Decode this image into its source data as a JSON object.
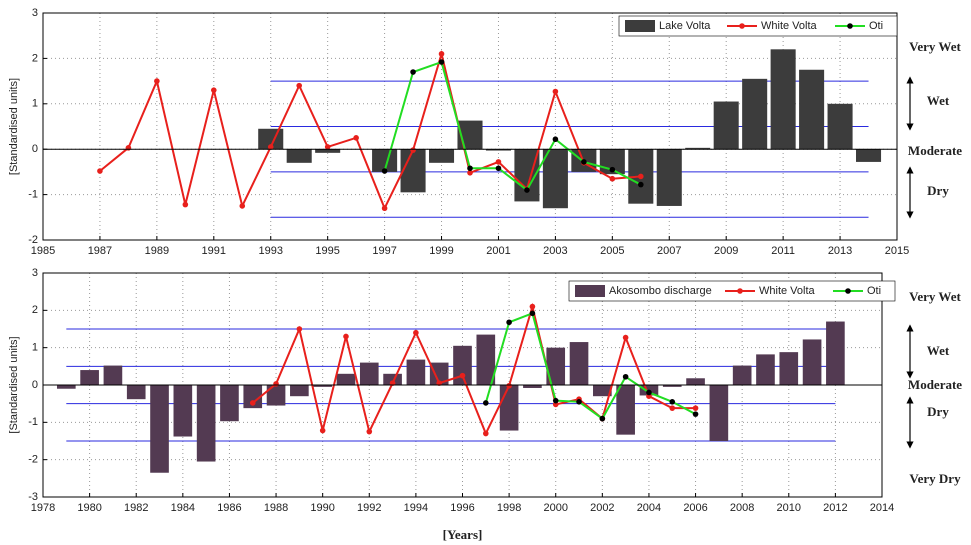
{
  "chart_data": [
    {
      "type": "bar_line",
      "ylabel": "[Standardised units]",
      "xlim": [
        1985,
        2015
      ],
      "xticks": [
        1985,
        1987,
        1989,
        1991,
        1993,
        1995,
        1997,
        1999,
        2001,
        2003,
        2005,
        2007,
        2009,
        2011,
        2013,
        2015
      ],
      "ylim": [
        -2,
        3
      ],
      "yticks": [
        -2,
        -1,
        0,
        1,
        2,
        3
      ],
      "grid": true,
      "reference_lines": [
        -1.5,
        -0.5,
        0.5,
        1.5
      ],
      "reference_color": "#2a2adf",
      "zone_labels": [
        "Very Wet",
        "Wet",
        "Moderate",
        "Dry"
      ],
      "legend": "upper right",
      "series": [
        {
          "name": "Lake Volta",
          "type": "bar",
          "color": "#3c3c3c",
          "x": [
            1993,
            1994,
            1995,
            1996,
            1997,
            1998,
            1999,
            2000,
            2001,
            2002,
            2003,
            2004,
            2005,
            2006,
            2007,
            2008,
            2009,
            2010,
            2011,
            2012,
            2013,
            2014
          ],
          "values": [
            0.45,
            -0.3,
            -0.08,
            null,
            -0.5,
            -0.95,
            -0.3,
            0.63,
            -0.03,
            -1.15,
            -1.3,
            -0.5,
            -0.55,
            -1.2,
            -1.25,
            0.03,
            1.05,
            1.55,
            2.2,
            1.75,
            1.0,
            -0.28
          ]
        },
        {
          "name": "White Volta",
          "type": "line",
          "color": "#e8201c",
          "marker_color": "#e8201c",
          "x": [
            1987,
            1988,
            1989,
            1990,
            1991,
            1992,
            1993,
            1994,
            1995,
            1996,
            1997,
            1998,
            1999,
            2000,
            2001,
            2002,
            2003,
            2004,
            2005,
            2006
          ],
          "values": [
            -0.48,
            0.03,
            1.5,
            -1.22,
            1.3,
            -1.25,
            0.05,
            1.4,
            0.05,
            0.25,
            -1.3,
            -0.02,
            2.1,
            -0.52,
            -0.28,
            -0.88,
            1.27,
            -0.3,
            -0.65,
            -0.6
          ]
        },
        {
          "name": "Oti",
          "type": "line",
          "color": "#22dd22",
          "marker_color": "#000000",
          "x": [
            1997,
            1998,
            1999,
            2000,
            2001,
            2002,
            2003,
            2004,
            2005,
            2006
          ],
          "values": [
            -0.48,
            1.7,
            1.92,
            -0.42,
            -0.42,
            -0.9,
            0.22,
            -0.28,
            -0.45,
            -0.78
          ]
        }
      ]
    },
    {
      "type": "bar_line",
      "ylabel": "[Standardised units]",
      "xlabel": "[Years]",
      "xlim": [
        1978,
        2014
      ],
      "xticks": [
        1978,
        1980,
        1982,
        1984,
        1986,
        1988,
        1990,
        1992,
        1994,
        1996,
        1998,
        2000,
        2002,
        2004,
        2006,
        2008,
        2010,
        2012,
        2014
      ],
      "ylim": [
        -3,
        3
      ],
      "yticks": [
        -3,
        -2,
        -1,
        0,
        1,
        2,
        3
      ],
      "grid": true,
      "reference_lines": [
        -1.5,
        -0.5,
        0.5,
        1.5
      ],
      "reference_color": "#2a2adf",
      "zone_labels": [
        "Very Wet",
        "Wet",
        "Moderate",
        "Dry",
        "Very Dry"
      ],
      "legend": "upper right",
      "series": [
        {
          "name": "Akosombo discharge",
          "type": "bar",
          "color": "#533a52",
          "x": [
            1979,
            1980,
            1981,
            1982,
            1983,
            1984,
            1985,
            1986,
            1987,
            1988,
            1989,
            1990,
            1991,
            1992,
            1993,
            1994,
            1995,
            1996,
            1997,
            1998,
            1999,
            2000,
            2001,
            2002,
            2003,
            2004,
            2005,
            2006,
            2007,
            2008,
            2009,
            2010,
            2011,
            2012
          ],
          "values": [
            -0.1,
            0.4,
            0.52,
            -0.38,
            -2.35,
            -1.38,
            -2.05,
            -0.97,
            -0.62,
            -0.55,
            -0.3,
            -0.05,
            0.3,
            0.6,
            0.3,
            0.68,
            0.6,
            1.05,
            1.35,
            -1.22,
            -0.08,
            1.0,
            1.15,
            -0.3,
            -1.33,
            -0.28,
            -0.05,
            0.18,
            -1.5,
            0.52,
            0.82,
            0.88,
            1.22,
            1.7
          ]
        },
        {
          "name": "White Volta",
          "type": "line",
          "color": "#e8201c",
          "marker_color": "#e8201c",
          "x": [
            1987,
            1988,
            1989,
            1990,
            1991,
            1992,
            1993,
            1994,
            1995,
            1996,
            1997,
            1998,
            1999,
            2000,
            2001,
            2002,
            2003,
            2004,
            2005,
            2006
          ],
          "values": [
            -0.48,
            0.03,
            1.5,
            -1.22,
            1.3,
            -1.25,
            0.05,
            1.4,
            0.05,
            0.25,
            -1.3,
            -0.02,
            2.1,
            -0.52,
            -0.38,
            -0.9,
            1.27,
            -0.3,
            -0.62,
            -0.62
          ]
        },
        {
          "name": "Oti",
          "type": "line",
          "color": "#22dd22",
          "marker_color": "#000000",
          "x": [
            1997,
            1998,
            1999,
            2000,
            2001,
            2002,
            2003,
            2004,
            2005,
            2006
          ],
          "values": [
            -0.48,
            1.68,
            1.92,
            -0.42,
            -0.45,
            -0.9,
            0.22,
            -0.2,
            -0.45,
            -0.78
          ]
        }
      ]
    }
  ]
}
